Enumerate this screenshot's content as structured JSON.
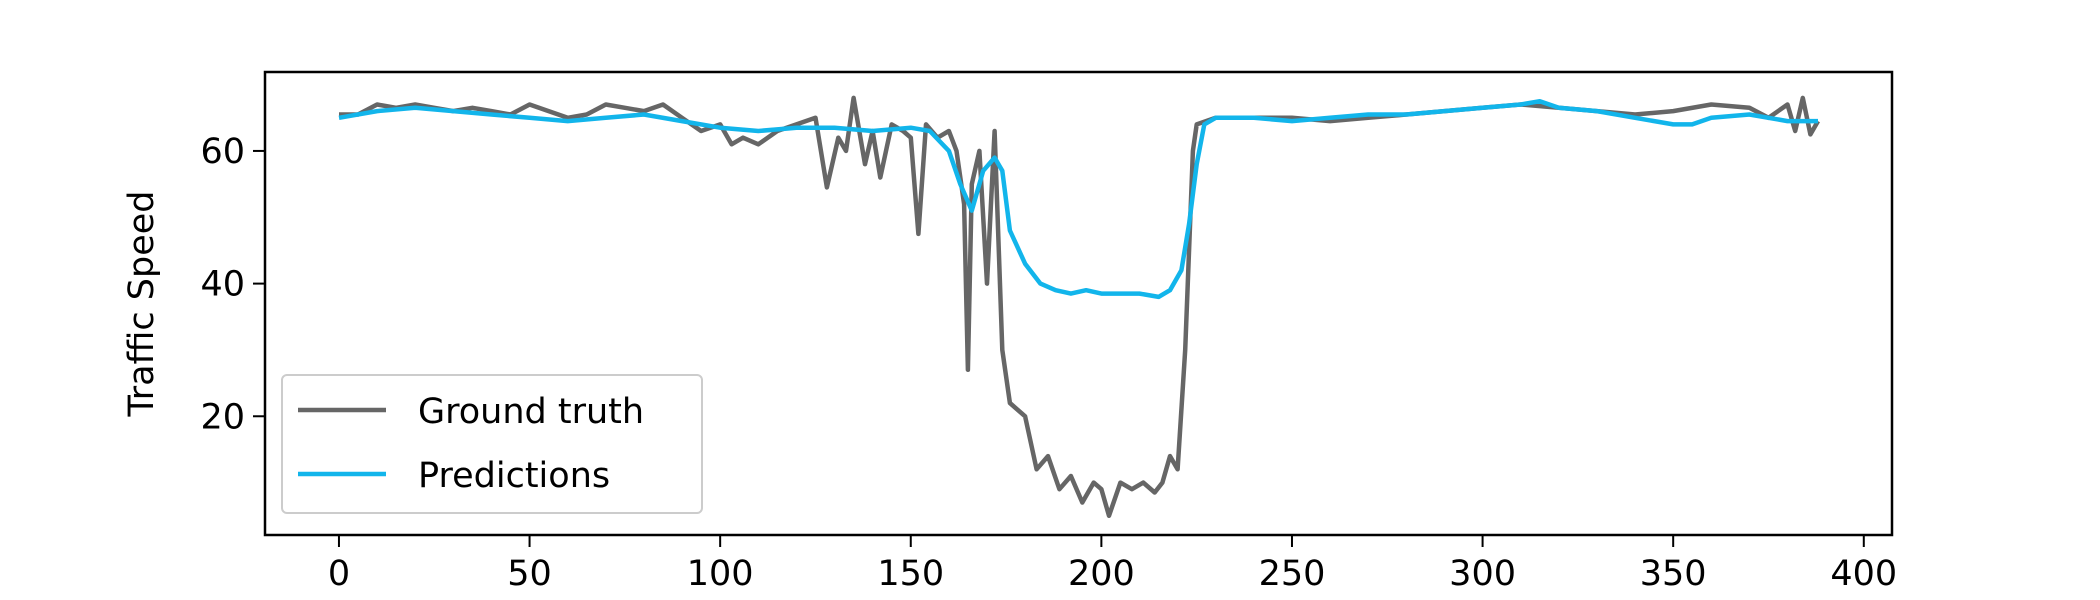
{
  "chart_data": {
    "type": "line",
    "title": "",
    "xlabel": "",
    "ylabel": "Traffic Speed",
    "xlim": [
      -19.4,
      407.4
    ],
    "ylim": [
      2.1,
      71.9
    ],
    "xticks": [
      0,
      50,
      100,
      150,
      200,
      250,
      300,
      350,
      400
    ],
    "yticks": [
      20,
      40,
      60
    ],
    "grid": false,
    "legend_position": "lower-left",
    "series": [
      {
        "name": "Ground truth",
        "color": "#666666",
        "points": [
          [
            0,
            65.5
          ],
          [
            5,
            65.5
          ],
          [
            10,
            67
          ],
          [
            15,
            66.5
          ],
          [
            20,
            67
          ],
          [
            25,
            66.5
          ],
          [
            30,
            66
          ],
          [
            35,
            66.5
          ],
          [
            40,
            66
          ],
          [
            45,
            65.5
          ],
          [
            50,
            67
          ],
          [
            55,
            66
          ],
          [
            60,
            65
          ],
          [
            65,
            65.5
          ],
          [
            70,
            67
          ],
          [
            75,
            66.5
          ],
          [
            80,
            66
          ],
          [
            85,
            67
          ],
          [
            90,
            65
          ],
          [
            95,
            63
          ],
          [
            100,
            64
          ],
          [
            103,
            61
          ],
          [
            106,
            62
          ],
          [
            110,
            61
          ],
          [
            115,
            63
          ],
          [
            120,
            64
          ],
          [
            125,
            65
          ],
          [
            128,
            54.5
          ],
          [
            131,
            62
          ],
          [
            133,
            60
          ],
          [
            135,
            68
          ],
          [
            138,
            58
          ],
          [
            140,
            63
          ],
          [
            142,
            56
          ],
          [
            145,
            64
          ],
          [
            148,
            63
          ],
          [
            150,
            62
          ],
          [
            152,
            47.5
          ],
          [
            154,
            64
          ],
          [
            157,
            62
          ],
          [
            160,
            63
          ],
          [
            162,
            60
          ],
          [
            164,
            52
          ],
          [
            165,
            27
          ],
          [
            166,
            55
          ],
          [
            168,
            60
          ],
          [
            170,
            40
          ],
          [
            172,
            63
          ],
          [
            174,
            30
          ],
          [
            176,
            22
          ],
          [
            180,
            20
          ],
          [
            183,
            12
          ],
          [
            186,
            14
          ],
          [
            189,
            9
          ],
          [
            192,
            11
          ],
          [
            195,
            7
          ],
          [
            198,
            10
          ],
          [
            200,
            9
          ],
          [
            202,
            5
          ],
          [
            205,
            10
          ],
          [
            208,
            9
          ],
          [
            211,
            10
          ],
          [
            214,
            8.5
          ],
          [
            216,
            10
          ],
          [
            218,
            14
          ],
          [
            220,
            12
          ],
          [
            222,
            30
          ],
          [
            224,
            60
          ],
          [
            225,
            64
          ],
          [
            230,
            65
          ],
          [
            240,
            65
          ],
          [
            250,
            65
          ],
          [
            260,
            64.5
          ],
          [
            270,
            65
          ],
          [
            280,
            65.5
          ],
          [
            290,
            66
          ],
          [
            300,
            66.5
          ],
          [
            310,
            67
          ],
          [
            320,
            66.5
          ],
          [
            330,
            66
          ],
          [
            340,
            65.5
          ],
          [
            350,
            66
          ],
          [
            360,
            67
          ],
          [
            370,
            66.5
          ],
          [
            375,
            65
          ],
          [
            380,
            67
          ],
          [
            382,
            63
          ],
          [
            384,
            68
          ],
          [
            386,
            62.5
          ],
          [
            388,
            64.5
          ]
        ]
      },
      {
        "name": "Predictions",
        "color": "#12b5eb",
        "points": [
          [
            0,
            65
          ],
          [
            10,
            66
          ],
          [
            20,
            66.5
          ],
          [
            30,
            66
          ],
          [
            40,
            65.5
          ],
          [
            50,
            65
          ],
          [
            60,
            64.5
          ],
          [
            70,
            65
          ],
          [
            80,
            65.5
          ],
          [
            90,
            64.5
          ],
          [
            100,
            63.5
          ],
          [
            110,
            63
          ],
          [
            120,
            63.5
          ],
          [
            130,
            63.5
          ],
          [
            140,
            63
          ],
          [
            150,
            63.5
          ],
          [
            155,
            63
          ],
          [
            160,
            60
          ],
          [
            163,
            55
          ],
          [
            166,
            51
          ],
          [
            169,
            57
          ],
          [
            172,
            59
          ],
          [
            174,
            57
          ],
          [
            176,
            48
          ],
          [
            180,
            43
          ],
          [
            184,
            40
          ],
          [
            188,
            39
          ],
          [
            192,
            38.5
          ],
          [
            196,
            39
          ],
          [
            200,
            38.5
          ],
          [
            205,
            38.5
          ],
          [
            210,
            38.5
          ],
          [
            215,
            38
          ],
          [
            218,
            39
          ],
          [
            221,
            42
          ],
          [
            223,
            49
          ],
          [
            225,
            58
          ],
          [
            227,
            64
          ],
          [
            230,
            65
          ],
          [
            240,
            65
          ],
          [
            250,
            64.5
          ],
          [
            260,
            65
          ],
          [
            270,
            65.5
          ],
          [
            280,
            65.5
          ],
          [
            290,
            66
          ],
          [
            300,
            66.5
          ],
          [
            310,
            67
          ],
          [
            315,
            67.5
          ],
          [
            320,
            66.5
          ],
          [
            330,
            66
          ],
          [
            340,
            65
          ],
          [
            350,
            64
          ],
          [
            355,
            64
          ],
          [
            360,
            65
          ],
          [
            370,
            65.5
          ],
          [
            380,
            64.5
          ],
          [
            388,
            64.5
          ]
        ]
      }
    ]
  }
}
